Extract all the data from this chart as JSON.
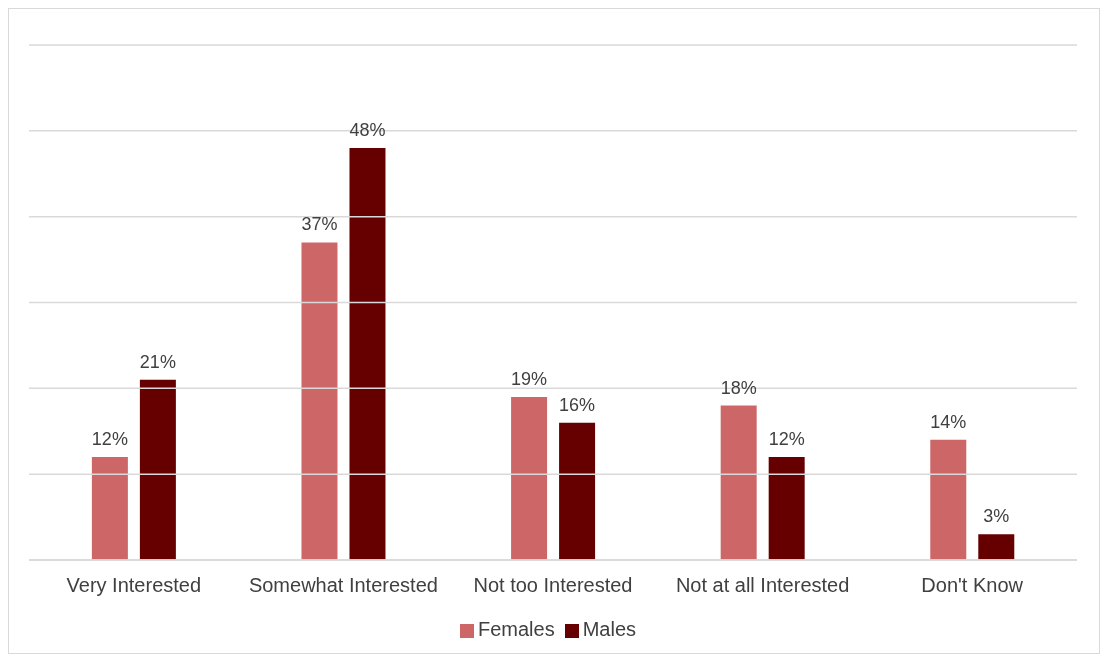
{
  "chart_data": {
    "type": "bar",
    "categories": [
      "Very Interested",
      "Somewhat Interested",
      "Not too Interested",
      "Not at all Interested",
      "Don't Know"
    ],
    "series": [
      {
        "name": "Females",
        "color": "#cd6666",
        "values": [
          12,
          37,
          19,
          18,
          14
        ],
        "value_labels": [
          "12%",
          "37%",
          "19%",
          "18%",
          "14%"
        ]
      },
      {
        "name": "Males",
        "color": "#660000",
        "values": [
          21,
          48,
          16,
          12,
          3
        ],
        "value_labels": [
          "21%",
          "48%",
          "16%",
          "12%",
          "3%"
        ]
      }
    ],
    "ylim": [
      0,
      60
    ],
    "yticks": [
      {
        "value": 0,
        "label": null
      },
      {
        "value": 10,
        "label": null
      },
      {
        "value": 20,
        "label": null
      },
      {
        "value": 30,
        "label": null
      },
      {
        "value": 40,
        "label": null
      },
      {
        "value": 50,
        "label": null
      },
      {
        "value": 60,
        "label": null
      }
    ],
    "grid": "y",
    "tick_labels": "x",
    "legend": "bottom"
  }
}
